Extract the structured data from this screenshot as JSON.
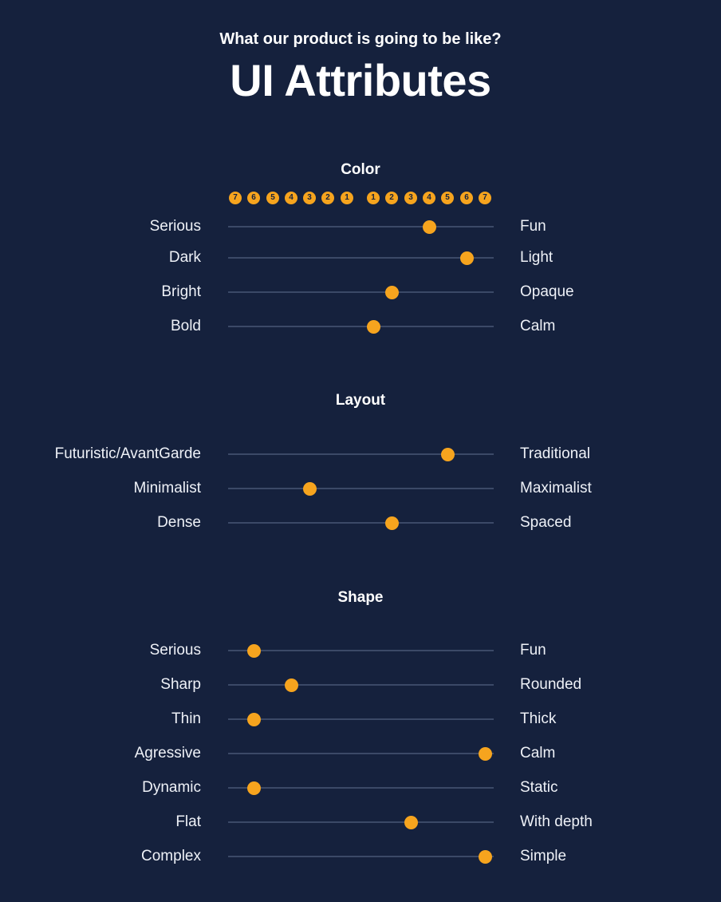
{
  "header": {
    "subtitle": "What our product is going to be like?",
    "title": "UI Attributes"
  },
  "scale": {
    "left": [
      "7",
      "6",
      "5",
      "4",
      "3",
      "2",
      "1"
    ],
    "right": [
      "1",
      "2",
      "3",
      "4",
      "5",
      "6",
      "7"
    ]
  },
  "colors": {
    "background": "#15213d",
    "accent": "#f6a41e",
    "track": "#3b4967"
  },
  "sections": [
    {
      "title": "Color",
      "rows": [
        {
          "left": "Serious",
          "right": "Fun",
          "value": 4
        },
        {
          "left": "Dark",
          "right": "Light",
          "value": 6
        },
        {
          "left": "Bright",
          "right": "Opaque",
          "value": 2
        },
        {
          "left": "Bold",
          "right": "Calm",
          "value": 1
        }
      ]
    },
    {
      "title": "Layout",
      "rows": [
        {
          "left": "Futuristic/AvantGarde",
          "right": "Traditional",
          "value": 5
        },
        {
          "left": "Minimalist",
          "right": "Maximalist",
          "value": -3
        },
        {
          "left": "Dense",
          "right": "Spaced",
          "value": 2
        }
      ]
    },
    {
      "title": "Shape",
      "rows": [
        {
          "left": "Serious",
          "right": "Fun",
          "value": -6
        },
        {
          "left": "Sharp",
          "right": "Rounded",
          "value": -4
        },
        {
          "left": "Thin",
          "right": "Thick",
          "value": -6
        },
        {
          "left": "Agressive",
          "right": "Calm",
          "value": 7
        },
        {
          "left": "Dynamic",
          "right": "Static",
          "value": -6
        },
        {
          "left": "Flat",
          "right": "With depth",
          "value": 3
        },
        {
          "left": "Complex",
          "right": "Simple",
          "value": 7
        }
      ]
    }
  ]
}
